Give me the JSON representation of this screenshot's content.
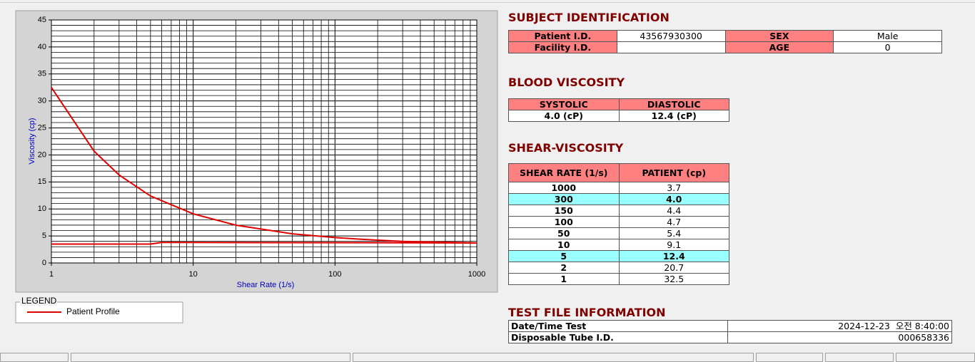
{
  "chart_data": {
    "type": "line",
    "xlabel": "Shear Rate (1/s)",
    "ylabel": "Viscosity (cp)",
    "log_x": true,
    "xlim": [
      1,
      1000
    ],
    "xticks": [
      1,
      10,
      100,
      1000
    ],
    "ylim": [
      0,
      45
    ],
    "yticks": [
      0,
      5,
      10,
      15,
      20,
      25,
      30,
      35,
      40,
      45
    ],
    "grid": true,
    "minor_grid": true,
    "series": [
      {
        "name": "Patient Profile",
        "color": "#e00000",
        "x": [
          1,
          2,
          3,
          5,
          10,
          20,
          50,
          100,
          150,
          300,
          1000,
          6,
          5,
          1
        ],
        "values": [
          32.5,
          20.7,
          16.3,
          12.4,
          9.1,
          7.0,
          5.4,
          4.7,
          4.4,
          4.0,
          3.7,
          3.8,
          3.5,
          3.5
        ]
      }
    ],
    "legend_title": "LEGEND"
  },
  "subject": {
    "title": "SUBJECT IDENTIFICATION",
    "rows": [
      [
        "Patient I.D.",
        "43567930300",
        "SEX",
        "Male"
      ],
      [
        "Facility I.D.",
        null,
        "AGE",
        "0"
      ]
    ]
  },
  "blood": {
    "title": "BLOOD VISCOSITY",
    "header": [
      "SYSTOLIC",
      "DIASTOLIC"
    ],
    "values": [
      "4.0 (cP)",
      "12.4 (cP)"
    ]
  },
  "shear": {
    "title": "SHEAR-VISCOSITY",
    "header": [
      "SHEAR RATE (1/s)",
      "PATIENT (cp)"
    ],
    "rows": [
      {
        "rate": "1000",
        "patient": "3.7",
        "highlight": false
      },
      {
        "rate": "300",
        "patient": "4.0",
        "highlight": true
      },
      {
        "rate": "150",
        "patient": "4.4",
        "highlight": false
      },
      {
        "rate": "100",
        "patient": "4.7",
        "highlight": false
      },
      {
        "rate": "50",
        "patient": "5.4",
        "highlight": false
      },
      {
        "rate": "10",
        "patient": "9.1",
        "highlight": false
      },
      {
        "rate": "5",
        "patient": "12.4",
        "highlight": true
      },
      {
        "rate": "2",
        "patient": "20.7",
        "highlight": false
      },
      {
        "rate": "1",
        "patient": "32.5",
        "highlight": false
      }
    ]
  },
  "test_file": {
    "title": "TEST FILE INFORMATION",
    "rows": [
      [
        "Date/Time Test",
        "2024-12-23  오전 8:40:00"
      ],
      [
        "Disposable Tube I.D.",
        "000658336"
      ]
    ]
  }
}
